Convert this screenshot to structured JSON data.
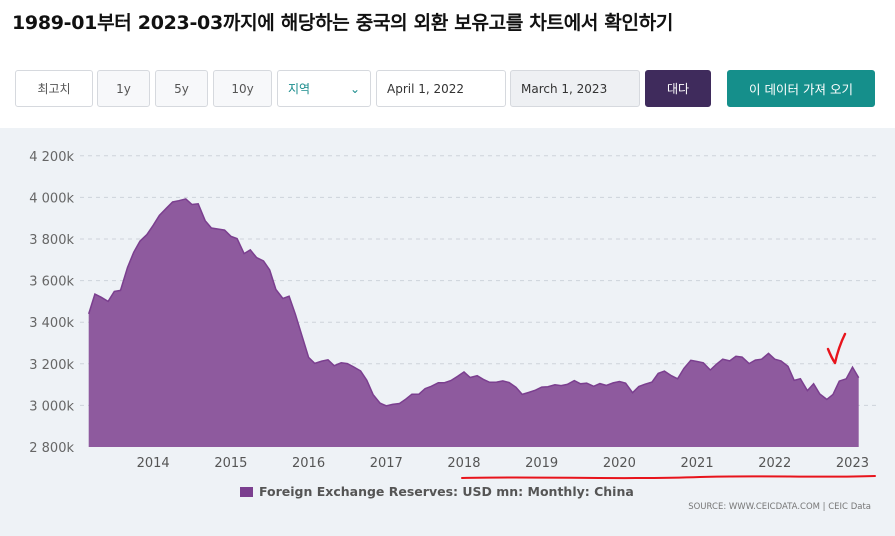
{
  "title": "1989-01부터 2023-03까지에 해당하는 중국의 외환 보유고를 차트에서 확인하기",
  "toolbar": {
    "max_label": "최고치",
    "range_1y": "1y",
    "range_5y": "5y",
    "range_10y": "10y",
    "region_label": "지역",
    "start_date": "April 1, 2022",
    "end_date": "March 1, 2023",
    "compare_label": "대다",
    "get_data_label": "이 데이터 가져 오기"
  },
  "legend_label": "Foreign Exchange Reserves: USD mn: Monthly: China",
  "source_text": "SOURCE: WWW.CEICDATA.COM | CEIC Data",
  "colors": {
    "series_fill": "#8e5a9e",
    "series_stroke": "#7b3f8f",
    "annotation": "#e8141c",
    "accent_dark": "#3f2b5c",
    "accent_teal": "#158f8b"
  },
  "chart_data": {
    "type": "area",
    "y_tick_labels": [
      "2 800k",
      "3 000k",
      "3 200k",
      "3 400k",
      "3 600k",
      "3 800k",
      "4 000k",
      "4 200k"
    ],
    "x_tick_labels": [
      "2014",
      "2015",
      "2016",
      "2017",
      "2018",
      "2019",
      "2020",
      "2021",
      "2022",
      "2023"
    ],
    "x_start": 2013.2,
    "x_end": 2023.2,
    "ylim": [
      2800000,
      4230000
    ],
    "grid": true,
    "legend_position": "bottom",
    "series": [
      {
        "name": "Foreign Exchange Reserves: USD mn: Monthly: China",
        "points": [
          [
            2013.17,
            3440000
          ],
          [
            2013.25,
            3535000
          ],
          [
            2013.33,
            3520000
          ],
          [
            2013.42,
            3500000
          ],
          [
            2013.5,
            3548000
          ],
          [
            2013.58,
            3553000
          ],
          [
            2013.67,
            3663000
          ],
          [
            2013.75,
            3736000
          ],
          [
            2013.83,
            3790000
          ],
          [
            2013.92,
            3821000
          ],
          [
            2014.0,
            3866000
          ],
          [
            2014.08,
            3914000
          ],
          [
            2014.17,
            3948000
          ],
          [
            2014.25,
            3978000
          ],
          [
            2014.33,
            3984000
          ],
          [
            2014.42,
            3993000
          ],
          [
            2014.5,
            3966000
          ],
          [
            2014.58,
            3969000
          ],
          [
            2014.67,
            3888000
          ],
          [
            2014.75,
            3853000
          ],
          [
            2014.83,
            3848000
          ],
          [
            2014.92,
            3843000
          ],
          [
            2015.0,
            3813000
          ],
          [
            2015.08,
            3802000
          ],
          [
            2015.17,
            3730000
          ],
          [
            2015.25,
            3748000
          ],
          [
            2015.33,
            3711000
          ],
          [
            2015.42,
            3694000
          ],
          [
            2015.5,
            3651000
          ],
          [
            2015.58,
            3557000
          ],
          [
            2015.67,
            3514000
          ],
          [
            2015.75,
            3525000
          ],
          [
            2015.83,
            3438000
          ],
          [
            2015.92,
            3330000
          ],
          [
            2016.0,
            3231000
          ],
          [
            2016.08,
            3202000
          ],
          [
            2016.17,
            3213000
          ],
          [
            2016.25,
            3219000
          ],
          [
            2016.33,
            3191000
          ],
          [
            2016.42,
            3205000
          ],
          [
            2016.5,
            3201000
          ],
          [
            2016.58,
            3185000
          ],
          [
            2016.67,
            3166000
          ],
          [
            2016.75,
            3121000
          ],
          [
            2016.83,
            3052000
          ],
          [
            2016.92,
            3011000
          ],
          [
            2017.0,
            2998000
          ],
          [
            2017.08,
            3005000
          ],
          [
            2017.17,
            3009000
          ],
          [
            2017.25,
            3030000
          ],
          [
            2017.33,
            3054000
          ],
          [
            2017.42,
            3054000
          ],
          [
            2017.5,
            3081000
          ],
          [
            2017.58,
            3092000
          ],
          [
            2017.67,
            3109000
          ],
          [
            2017.75,
            3109000
          ],
          [
            2017.83,
            3119000
          ],
          [
            2017.92,
            3140000
          ],
          [
            2018.0,
            3161000
          ],
          [
            2018.08,
            3134000
          ],
          [
            2018.17,
            3143000
          ],
          [
            2018.25,
            3125000
          ],
          [
            2018.33,
            3111000
          ],
          [
            2018.42,
            3112000
          ],
          [
            2018.5,
            3118000
          ],
          [
            2018.58,
            3110000
          ],
          [
            2018.67,
            3087000
          ],
          [
            2018.75,
            3053000
          ],
          [
            2018.83,
            3062000
          ],
          [
            2018.92,
            3073000
          ],
          [
            2019.0,
            3088000
          ],
          [
            2019.08,
            3090000
          ],
          [
            2019.17,
            3099000
          ],
          [
            2019.25,
            3095000
          ],
          [
            2019.33,
            3101000
          ],
          [
            2019.42,
            3119000
          ],
          [
            2019.5,
            3104000
          ],
          [
            2019.58,
            3107000
          ],
          [
            2019.67,
            3092000
          ],
          [
            2019.75,
            3105000
          ],
          [
            2019.83,
            3096000
          ],
          [
            2019.92,
            3108000
          ],
          [
            2020.0,
            3115000
          ],
          [
            2020.08,
            3107000
          ],
          [
            2020.17,
            3061000
          ],
          [
            2020.25,
            3091000
          ],
          [
            2020.33,
            3102000
          ],
          [
            2020.42,
            3112000
          ],
          [
            2020.5,
            3154000
          ],
          [
            2020.58,
            3165000
          ],
          [
            2020.67,
            3143000
          ],
          [
            2020.75,
            3128000
          ],
          [
            2020.83,
            3178000
          ],
          [
            2020.92,
            3217000
          ],
          [
            2021.0,
            3211000
          ],
          [
            2021.08,
            3205000
          ],
          [
            2021.17,
            3170000
          ],
          [
            2021.25,
            3198000
          ],
          [
            2021.33,
            3222000
          ],
          [
            2021.42,
            3214000
          ],
          [
            2021.5,
            3236000
          ],
          [
            2021.58,
            3232000
          ],
          [
            2021.67,
            3201000
          ],
          [
            2021.75,
            3218000
          ],
          [
            2021.83,
            3222000
          ],
          [
            2021.92,
            3250000
          ],
          [
            2022.0,
            3222000
          ],
          [
            2022.08,
            3214000
          ],
          [
            2022.17,
            3188000
          ],
          [
            2022.25,
            3120000
          ],
          [
            2022.33,
            3128000
          ],
          [
            2022.42,
            3071000
          ],
          [
            2022.5,
            3104000
          ],
          [
            2022.58,
            3055000
          ],
          [
            2022.67,
            3029000
          ],
          [
            2022.75,
            3053000
          ],
          [
            2022.83,
            3117000
          ],
          [
            2022.92,
            3128000
          ],
          [
            2023.0,
            3184000
          ],
          [
            2023.08,
            3133000
          ]
        ]
      }
    ]
  }
}
